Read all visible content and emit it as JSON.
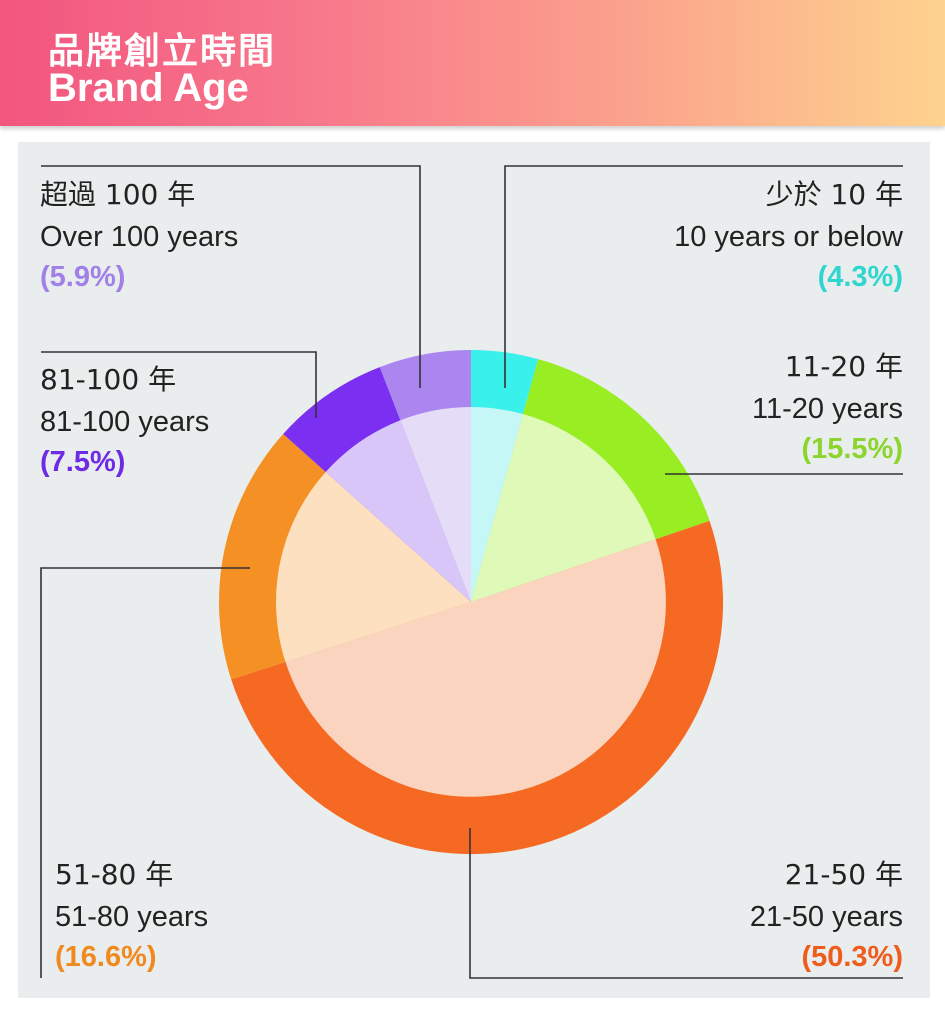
{
  "header": {
    "title_zh": "品牌創立時間",
    "title_en": "Brand Age"
  },
  "chart_data": {
    "type": "pie",
    "title": "Brand Age",
    "slices": [
      {
        "label_zh": "少於 10 年",
        "label_en": "10 years or below",
        "pct_text": "(4.3%)",
        "value": 4.3,
        "color": "#39f0ea",
        "inner_color": "#c4f7f6",
        "text_color": "#2ed6cf"
      },
      {
        "label_zh": "11-20 年",
        "label_en": "11-20 years",
        "pct_text": "(15.5%)",
        "value": 15.5,
        "color": "#98ee22",
        "inner_color": "#dff9b8",
        "text_color": "#8bd52c"
      },
      {
        "label_zh": "21-50 年",
        "label_en": "21-50 years",
        "pct_text": "(50.3%)",
        "value": 50.3,
        "color": "#f56923",
        "inner_color": "#fbd4bf",
        "text_color": "#ef5c1c"
      },
      {
        "label_zh": "51-80 年",
        "label_en": "51-80 years",
        "pct_text": "(16.6%)",
        "value": 16.6,
        "color": "#f59024",
        "inner_color": "#fde0c0",
        "text_color": "#f08a1e"
      },
      {
        "label_zh": "81-100 年",
        "label_en": "81-100 years",
        "pct_text": "(7.5%)",
        "value": 7.5,
        "color": "#7b2ff0",
        "inner_color": "#d8c6f8",
        "text_color": "#6f2ae6"
      },
      {
        "label_zh": "超過 100 年",
        "label_en": "Over 100 years",
        "pct_text": "(5.9%)",
        "value": 5.9,
        "color": "#aa86ee",
        "inner_color": "#e5dcf8",
        "text_color": "#a180e8"
      }
    ]
  }
}
